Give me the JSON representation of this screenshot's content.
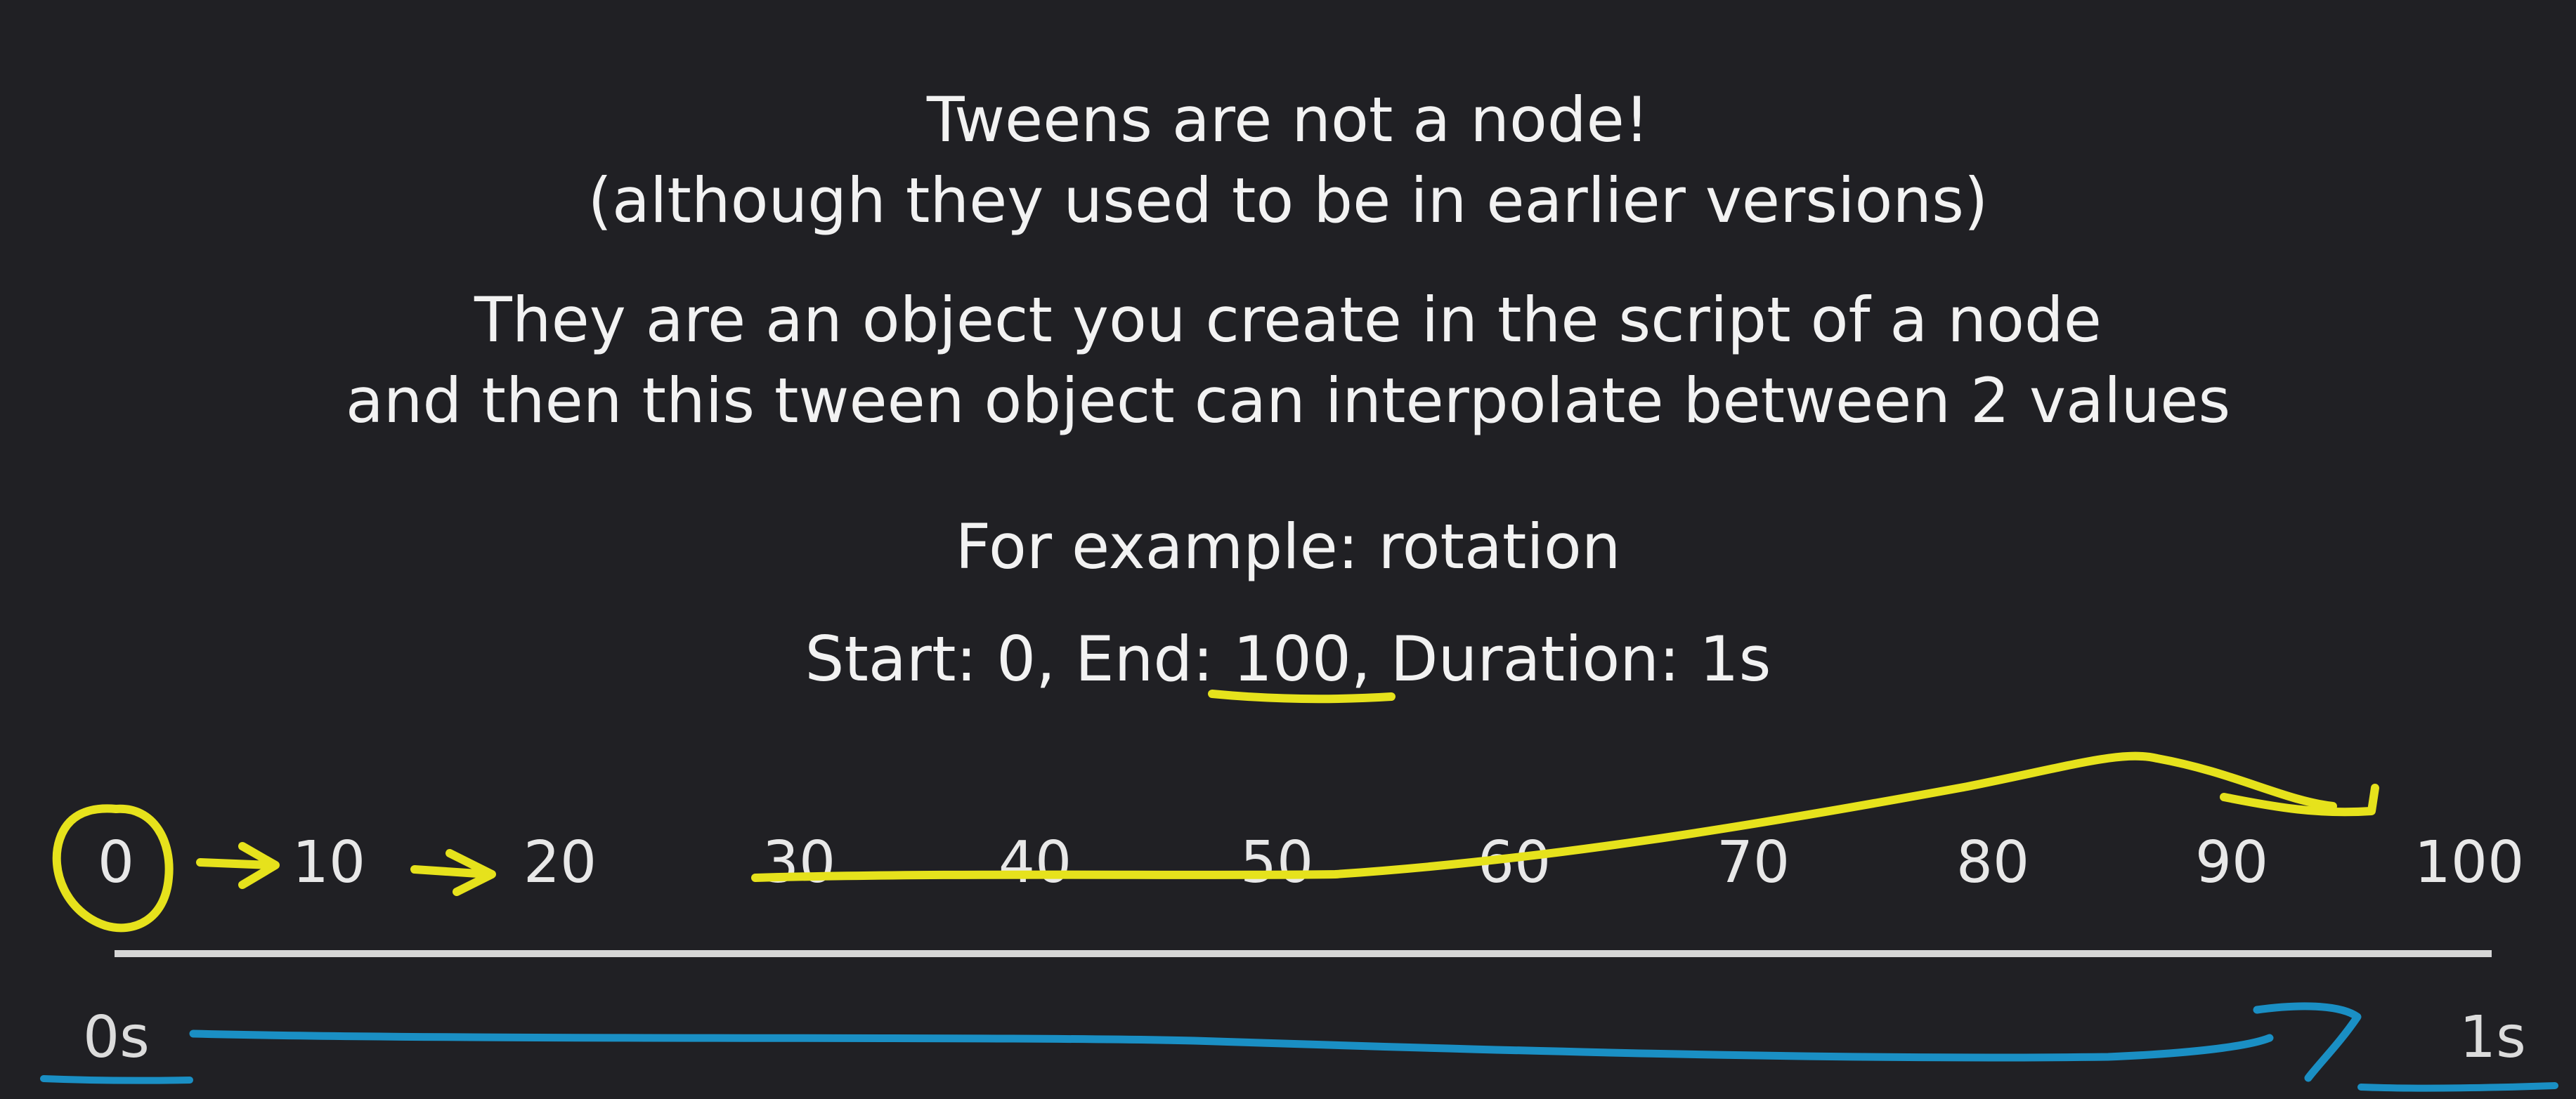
{
  "slide": {
    "title_line1": "Tweens are not a node!",
    "title_line2": "(although they used to be in earlier versions)",
    "body_line1": "They are an object you create in the script of a node",
    "body_line2": "and then this tween object can interpolate between 2 values",
    "example_label": "For example: rotation",
    "params": "Start: 0, End: 100, Duration: 1s"
  },
  "scale": {
    "ticks": [
      "0",
      "10",
      "20",
      "30",
      "40",
      "50",
      "60",
      "70",
      "80",
      "90",
      "100"
    ],
    "time_start": "0s",
    "time_end": "1s"
  },
  "colors": {
    "background": "#202024",
    "text": "#f2f2f2",
    "axis": "#d6d6d6",
    "annotation_yellow": "#e6e21c",
    "annotation_blue": "#1a8fc4"
  }
}
